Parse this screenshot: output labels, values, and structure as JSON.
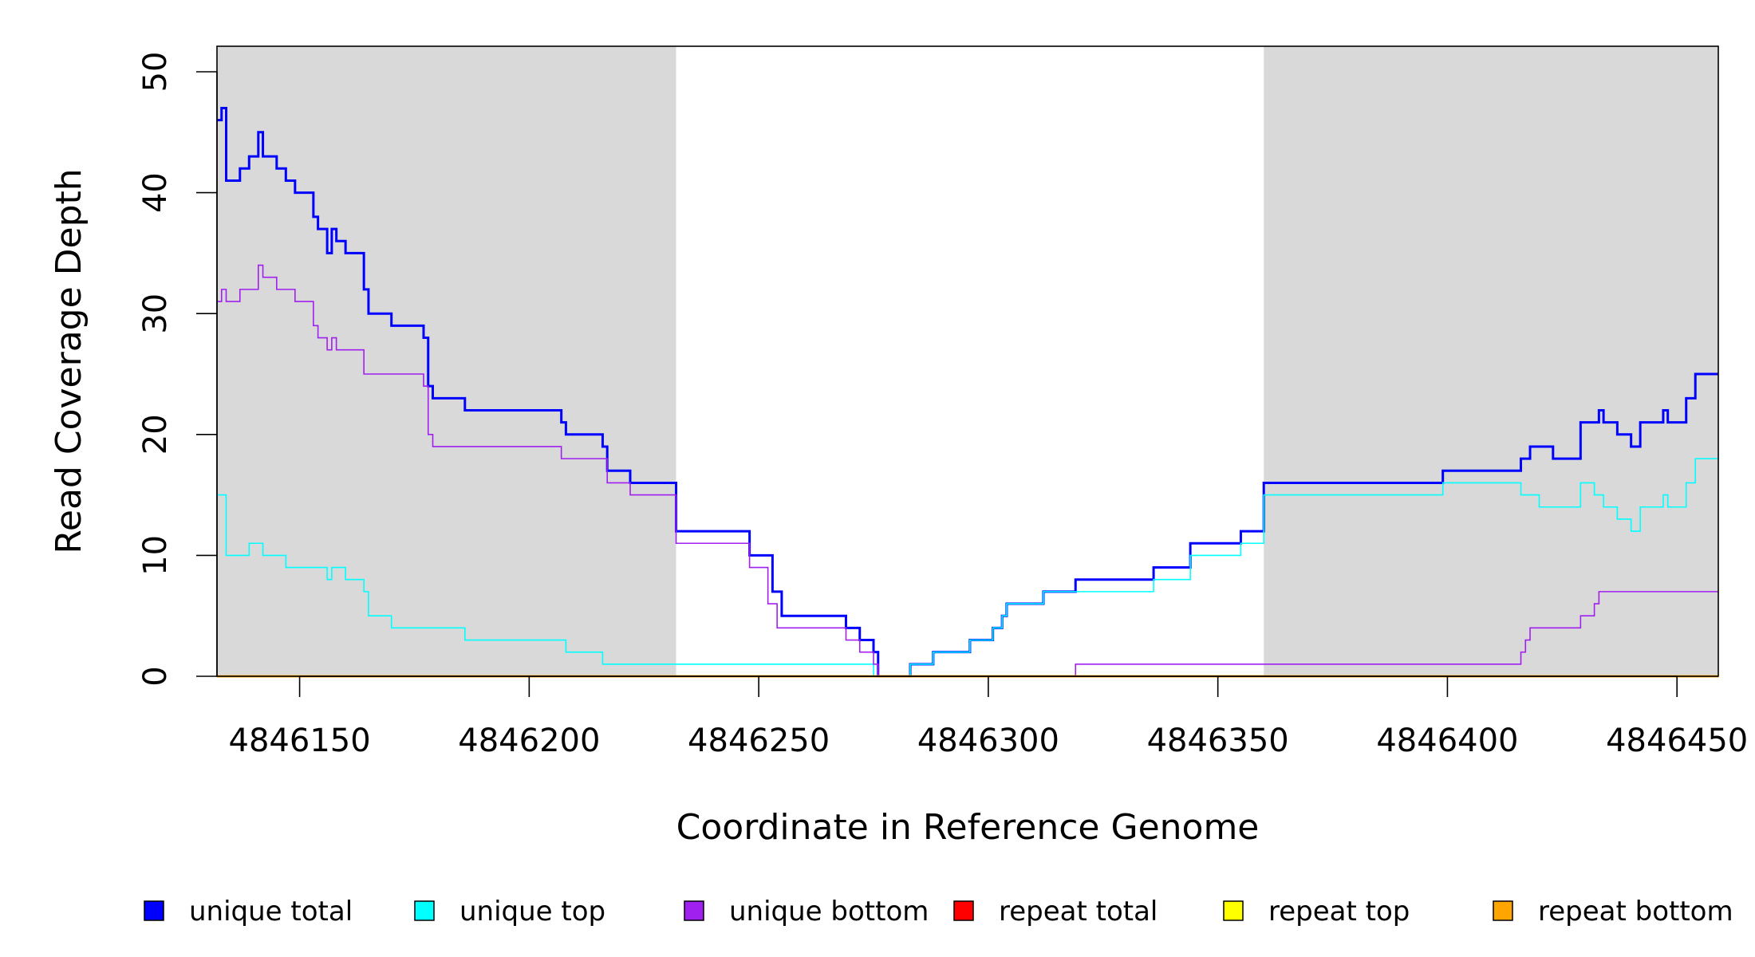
{
  "chart_data": {
    "type": "line",
    "title": "",
    "xlabel": "Coordinate in Reference Genome",
    "ylabel": "Read Coverage Depth",
    "xlim": [
      4846132,
      4846459
    ],
    "ylim": [
      0,
      52
    ],
    "x_ticks": [
      4846150,
      4846200,
      4846250,
      4846300,
      4846350,
      4846400,
      4846450
    ],
    "x_tick_labels": [
      "4846150",
      "4846200",
      "4846250",
      "4846300",
      "4846350",
      "4846400",
      "4846450"
    ],
    "y_ticks": [
      0,
      10,
      20,
      30,
      40,
      50
    ],
    "y_tick_labels": [
      "0",
      "10",
      "20",
      "30",
      "40",
      "50"
    ],
    "shaded_regions": [
      {
        "from": 4846132,
        "to": 4846232,
        "color": "#d9d9d9"
      },
      {
        "from": 4846360,
        "to": 4846459,
        "color": "#d9d9d9"
      }
    ],
    "legend_position": "bottom",
    "series": [
      {
        "name": "unique total",
        "color": "#0000ff",
        "points": [
          [
            4846132,
            46
          ],
          [
            4846133,
            47
          ],
          [
            4846134,
            41
          ],
          [
            4846137,
            42
          ],
          [
            4846139,
            43
          ],
          [
            4846141,
            45
          ],
          [
            4846142,
            43
          ],
          [
            4846145,
            42
          ],
          [
            4846147,
            41
          ],
          [
            4846149,
            40
          ],
          [
            4846153,
            38
          ],
          [
            4846154,
            37
          ],
          [
            4846156,
            35
          ],
          [
            4846157,
            37
          ],
          [
            4846158,
            36
          ],
          [
            4846160,
            35
          ],
          [
            4846164,
            32
          ],
          [
            4846165,
            30
          ],
          [
            4846170,
            29
          ],
          [
            4846177,
            28
          ],
          [
            4846178,
            24
          ],
          [
            4846179,
            23
          ],
          [
            4846186,
            22
          ],
          [
            4846207,
            21
          ],
          [
            4846208,
            20
          ],
          [
            4846216,
            19
          ],
          [
            4846217,
            17
          ],
          [
            4846222,
            16
          ],
          [
            4846232,
            12
          ],
          [
            4846248,
            10
          ],
          [
            4846253,
            7
          ],
          [
            4846255,
            5
          ],
          [
            4846269,
            4
          ],
          [
            4846272,
            3
          ],
          [
            4846275,
            2
          ],
          [
            4846276,
            0
          ],
          [
            4846283,
            1
          ],
          [
            4846288,
            2
          ],
          [
            4846296,
            3
          ],
          [
            4846301,
            4
          ],
          [
            4846303,
            5
          ],
          [
            4846304,
            6
          ],
          [
            4846312,
            7
          ],
          [
            4846319,
            8
          ],
          [
            4846336,
            9
          ],
          [
            4846344,
            11
          ],
          [
            4846355,
            12
          ],
          [
            4846360,
            16
          ],
          [
            4846399,
            17
          ],
          [
            4846416,
            18
          ],
          [
            4846418,
            19
          ],
          [
            4846423,
            18
          ],
          [
            4846429,
            21
          ],
          [
            4846433,
            22
          ],
          [
            4846434,
            21
          ],
          [
            4846437,
            20
          ],
          [
            4846440,
            19
          ],
          [
            4846442,
            21
          ],
          [
            4846447,
            22
          ],
          [
            4846448,
            21
          ],
          [
            4846452,
            23
          ],
          [
            4846454,
            25
          ],
          [
            4846459,
            25
          ]
        ]
      },
      {
        "name": "unique top",
        "color": "#00ffff",
        "points": [
          [
            4846132,
            15
          ],
          [
            4846134,
            10
          ],
          [
            4846139,
            11
          ],
          [
            4846142,
            10
          ],
          [
            4846147,
            9
          ],
          [
            4846156,
            8
          ],
          [
            4846157,
            9
          ],
          [
            4846160,
            8
          ],
          [
            4846164,
            7
          ],
          [
            4846165,
            5
          ],
          [
            4846170,
            4
          ],
          [
            4846186,
            3
          ],
          [
            4846208,
            2
          ],
          [
            4846216,
            1
          ],
          [
            4846275,
            0
          ],
          [
            4846283,
            1
          ],
          [
            4846288,
            2
          ],
          [
            4846296,
            3
          ],
          [
            4846301,
            4
          ],
          [
            4846303,
            5
          ],
          [
            4846304,
            6
          ],
          [
            4846312,
            7
          ],
          [
            4846336,
            8
          ],
          [
            4846344,
            10
          ],
          [
            4846355,
            11
          ],
          [
            4846360,
            15
          ],
          [
            4846399,
            16
          ],
          [
            4846416,
            15
          ],
          [
            4846420,
            14
          ],
          [
            4846429,
            16
          ],
          [
            4846432,
            15
          ],
          [
            4846434,
            14
          ],
          [
            4846437,
            13
          ],
          [
            4846440,
            12
          ],
          [
            4846442,
            14
          ],
          [
            4846447,
            15
          ],
          [
            4846448,
            14
          ],
          [
            4846452,
            16
          ],
          [
            4846454,
            18
          ],
          [
            4846459,
            18
          ]
        ]
      },
      {
        "name": "unique bottom",
        "color": "#a020f0",
        "points": [
          [
            4846132,
            31
          ],
          [
            4846133,
            32
          ],
          [
            4846134,
            31
          ],
          [
            4846137,
            32
          ],
          [
            4846141,
            34
          ],
          [
            4846142,
            33
          ],
          [
            4846145,
            32
          ],
          [
            4846149,
            31
          ],
          [
            4846153,
            29
          ],
          [
            4846154,
            28
          ],
          [
            4846156,
            27
          ],
          [
            4846157,
            28
          ],
          [
            4846158,
            27
          ],
          [
            4846164,
            25
          ],
          [
            4846177,
            24
          ],
          [
            4846178,
            20
          ],
          [
            4846179,
            19
          ],
          [
            4846207,
            18
          ],
          [
            4846217,
            16
          ],
          [
            4846222,
            15
          ],
          [
            4846232,
            11
          ],
          [
            4846248,
            9
          ],
          [
            4846252,
            6
          ],
          [
            4846254,
            4
          ],
          [
            4846269,
            3
          ],
          [
            4846272,
            2
          ],
          [
            4846275,
            1
          ],
          [
            4846276,
            0
          ],
          [
            4846319,
            1
          ],
          [
            4846416,
            2
          ],
          [
            4846417,
            3
          ],
          [
            4846418,
            4
          ],
          [
            4846429,
            5
          ],
          [
            4846432,
            6
          ],
          [
            4846433,
            7
          ],
          [
            4846459,
            7
          ]
        ]
      },
      {
        "name": "repeat total",
        "color": "#ff0000",
        "points": [
          [
            4846132,
            0
          ],
          [
            4846459,
            0
          ]
        ]
      },
      {
        "name": "repeat top",
        "color": "#ffff00",
        "points": [
          [
            4846132,
            0
          ],
          [
            4846459,
            0
          ]
        ]
      },
      {
        "name": "repeat bottom",
        "color": "#ffa500",
        "points": [
          [
            4846132,
            0
          ],
          [
            4846459,
            0
          ]
        ]
      }
    ]
  }
}
